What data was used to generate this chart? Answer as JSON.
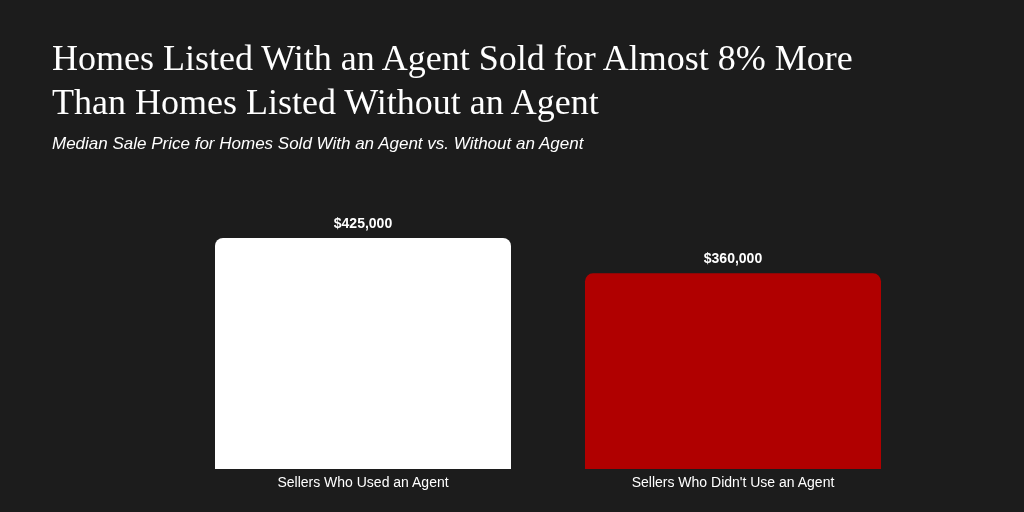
{
  "chart_data": {
    "type": "bar",
    "title": "Homes Listed With an Agent Sold for Almost 8% More Than Homes Listed Without an Agent",
    "subtitle": "Median Sale Price for Homes Sold With an Agent vs. Without an Agent",
    "categories": [
      "Sellers Who Used an Agent",
      "Sellers Who Didn't Use an Agent"
    ],
    "values": [
      425000,
      360000
    ],
    "colors": [
      "#ffffff",
      "#b00000"
    ],
    "value_labels": [
      "$425,000",
      "$360,000"
    ],
    "ylim": [
      0,
      425000
    ],
    "tick_labels": "x"
  }
}
